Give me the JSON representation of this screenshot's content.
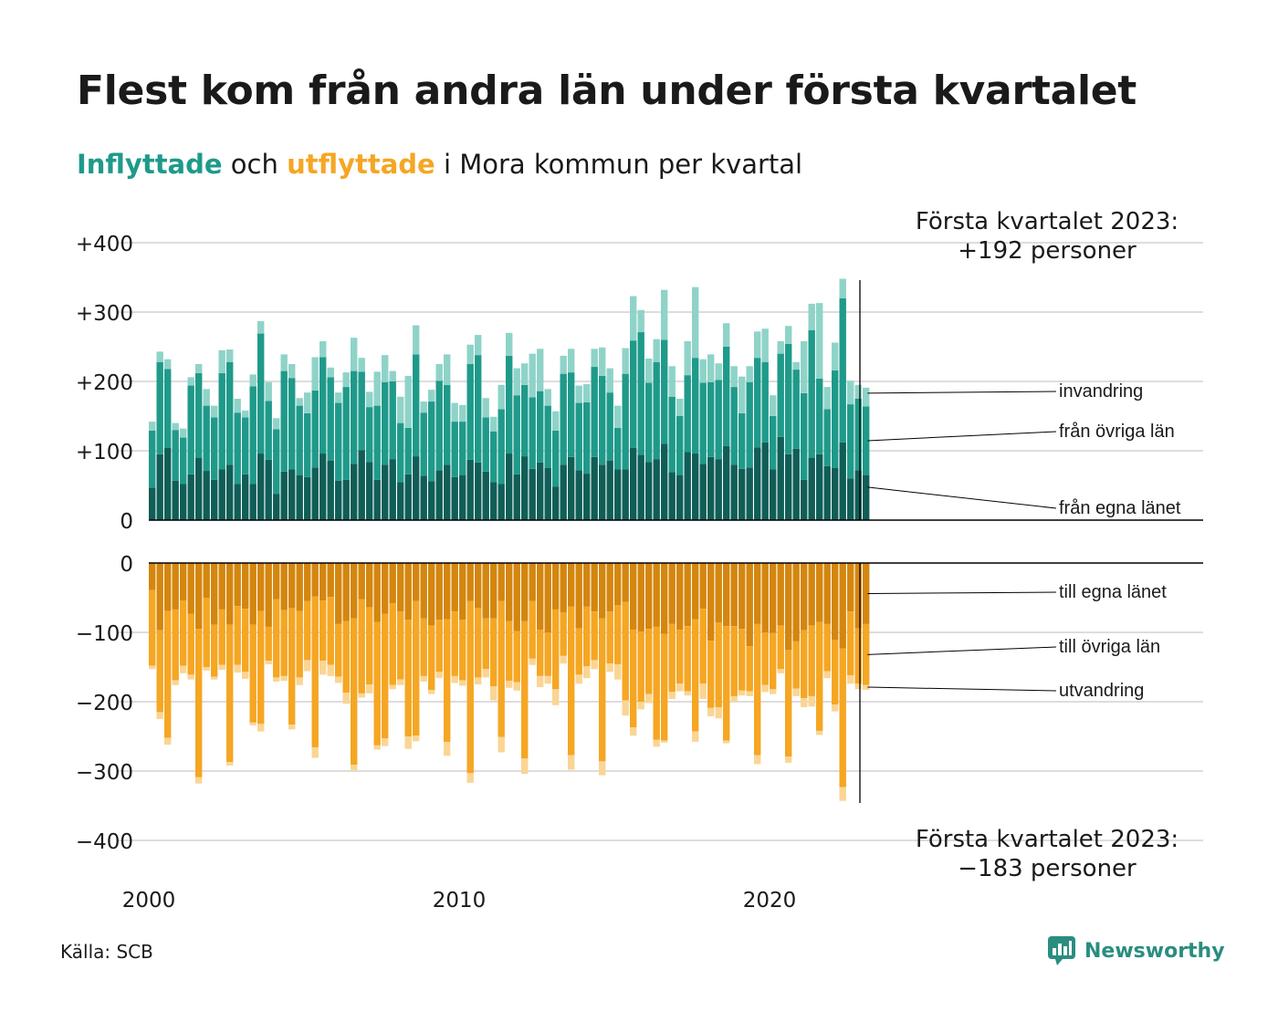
{
  "title": "Flest kom från andra län under första kvartalet",
  "subtitle": {
    "inflyttade": "Inflyttade",
    "och": "och",
    "utflyttade": "utflyttade",
    "rest": "i Mora kommun per kvartal"
  },
  "source": "Källa: SCB",
  "brand": {
    "name": "Newsworthy",
    "icon": "newsworthy-logo-icon"
  },
  "colors": {
    "in_own": "#105e57",
    "in_other": "#1f9a8a",
    "in_imm": "#8fd3c8",
    "out_own": "#d4860e",
    "out_other": "#f5a623",
    "out_emi": "#fad594",
    "grid": "#dddddd"
  },
  "chart_data": {
    "type": "bar",
    "start_year": 2000,
    "y_top": {
      "ticks": [
        0,
        100,
        200,
        300,
        400
      ],
      "tick_labels": [
        "0",
        "+100",
        "+200",
        "+300",
        "+400"
      ],
      "ylim": [
        0,
        400
      ]
    },
    "y_bottom": {
      "ticks": [
        0,
        -100,
        -200,
        -300,
        -400
      ],
      "tick_labels": [
        "0",
        "−100",
        "−200",
        "−300",
        "−400"
      ],
      "ylim": [
        -400,
        0
      ]
    },
    "x_ticks": [
      "2000",
      "2010",
      "2020"
    ],
    "grid": true,
    "annotation_top": [
      "Första kvartalet 2023:",
      "+192 personer"
    ],
    "annotation_bottom": [
      "Första kvartalet 2023:",
      "−183 personer"
    ],
    "series_in": [
      {
        "name": "från egna länet",
        "values": [
          47,
          95,
          104,
          57,
          52,
          66,
          90,
          71,
          58,
          73,
          80,
          52,
          66,
          52,
          96,
          87,
          38,
          70,
          73,
          65,
          62,
          76,
          96,
          86,
          57,
          58,
          81,
          101,
          84,
          58,
          80,
          88,
          55,
          66,
          92,
          64,
          56,
          72,
          80,
          62,
          65,
          87,
          83,
          70,
          55,
          52,
          96,
          66,
          92,
          74,
          83,
          75,
          48,
          80,
          91,
          72,
          67,
          91,
          80,
          86,
          73,
          73,
          104,
          94,
          84,
          88,
          110,
          69,
          65,
          98,
          96,
          81,
          91,
          88,
          107,
          80,
          74,
          76,
          105,
          112,
          73,
          120,
          95,
          103,
          58,
          90,
          95,
          78,
          75,
          112,
          60,
          72,
          65
        ]
      },
      {
        "name": "från övriga län",
        "values": [
          82,
          133,
          114,
          73,
          67,
          128,
          122,
          94,
          90,
          139,
          148,
          103,
          82,
          141,
          173,
          85,
          93,
          145,
          132,
          100,
          92,
          111,
          139,
          120,
          112,
          134,
          134,
          113,
          79,
          107,
          119,
          112,
          85,
          67,
          147,
          91,
          115,
          129,
          115,
          80,
          77,
          138,
          155,
          78,
          73,
          108,
          141,
          114,
          103,
          103,
          103,
          90,
          81,
          131,
          122,
          97,
          103,
          130,
          128,
          98,
          60,
          138,
          155,
          177,
          114,
          140,
          150,
          109,
          85,
          111,
          138,
          117,
          108,
          114,
          143,
          112,
          80,
          123,
          129,
          116,
          77,
          120,
          159,
          114,
          125,
          184,
          109,
          82,
          141,
          208,
          107,
          103,
          99
        ]
      },
      {
        "name": "invandring",
        "values": [
          13,
          15,
          14,
          10,
          13,
          12,
          13,
          24,
          17,
          33,
          18,
          20,
          10,
          17,
          18,
          27,
          16,
          24,
          20,
          11,
          30,
          48,
          23,
          14,
          15,
          21,
          48,
          20,
          22,
          49,
          39,
          15,
          38,
          75,
          42,
          16,
          17,
          24,
          44,
          27,
          24,
          28,
          29,
          28,
          21,
          35,
          33,
          39,
          31,
          63,
          61,
          24,
          28,
          26,
          34,
          25,
          26,
          26,
          41,
          35,
          32,
          37,
          64,
          32,
          35,
          33,
          72,
          44,
          25,
          49,
          102,
          34,
          40,
          24,
          34,
          30,
          53,
          23,
          38,
          48,
          30,
          18,
          26,
          11,
          75,
          38,
          109,
          32,
          40,
          28,
          34,
          20,
          27
        ]
      }
    ],
    "series_out": [
      {
        "name": "till egna länet",
        "values": [
          -39,
          -97,
          -69,
          -67,
          -54,
          -73,
          -95,
          -50,
          -89,
          -67,
          -89,
          -62,
          -66,
          -89,
          -69,
          -92,
          -52,
          -68,
          -65,
          -69,
          -55,
          -48,
          -54,
          -49,
          -88,
          -84,
          -80,
          -52,
          -64,
          -85,
          -73,
          -58,
          -70,
          -82,
          -55,
          -80,
          -90,
          -82,
          -81,
          -70,
          -82,
          -55,
          -65,
          -80,
          -80,
          -55,
          -84,
          -98,
          -84,
          -55,
          -96,
          -100,
          -67,
          -71,
          -63,
          -94,
          -63,
          -70,
          -80,
          -70,
          -61,
          -56,
          -96,
          -99,
          -95,
          -92,
          -102,
          -88,
          -96,
          -91,
          -81,
          -66,
          -112,
          -86,
          -91,
          -91,
          -95,
          -120,
          -88,
          -100,
          -101,
          -90,
          -125,
          -113,
          -97,
          -90,
          -85,
          -88,
          -111,
          -123,
          -70,
          -94,
          -88
        ]
      },
      {
        "name": "till övriga län",
        "values": [
          -109,
          -118,
          -183,
          -102,
          -94,
          -88,
          -214,
          -100,
          -75,
          -80,
          -198,
          -85,
          -91,
          -141,
          -163,
          -49,
          -113,
          -95,
          -168,
          -96,
          -85,
          -218,
          -87,
          -98,
          -76,
          -103,
          -211,
          -136,
          -111,
          -178,
          -180,
          -118,
          -98,
          -168,
          -194,
          -83,
          -93,
          -75,
          -177,
          -93,
          -87,
          -248,
          -100,
          -73,
          -98,
          -196,
          -86,
          -74,
          -198,
          -83,
          -67,
          -63,
          -115,
          -63,
          -214,
          -67,
          -86,
          -70,
          -206,
          -75,
          -85,
          -142,
          -141,
          -101,
          -94,
          -163,
          -154,
          -98,
          -78,
          -94,
          -162,
          -108,
          -97,
          -122,
          -165,
          -101,
          -89,
          -65,
          -189,
          -76,
          -81,
          -63,
          -154,
          -68,
          -98,
          -102,
          -157,
          -68,
          -93,
          -200,
          -92,
          -80,
          -88
        ]
      },
      {
        "name": "utvandring",
        "values": [
          -5,
          -10,
          -10,
          -7,
          -11,
          -7,
          -9,
          -5,
          -4,
          -7,
          -5,
          -11,
          -10,
          -4,
          -11,
          -5,
          -6,
          -7,
          -7,
          -11,
          -16,
          -15,
          -20,
          -16,
          -9,
          -16,
          -8,
          -6,
          -13,
          -6,
          -11,
          -6,
          -8,
          -18,
          -8,
          -8,
          -6,
          -9,
          -20,
          -10,
          -8,
          -14,
          -10,
          -12,
          -20,
          -22,
          -10,
          -12,
          -22,
          -9,
          -16,
          -11,
          -23,
          -11,
          -21,
          -13,
          -17,
          -13,
          -20,
          -12,
          -22,
          -22,
          -12,
          -11,
          -13,
          -10,
          -3,
          -10,
          -11,
          -6,
          -15,
          -22,
          -12,
          -16,
          -4,
          -8,
          -7,
          -7,
          -13,
          -10,
          -7,
          -6,
          -9,
          -11,
          -13,
          -15,
          -6,
          -10,
          -10,
          -20,
          -12,
          -8,
          -7
        ]
      }
    ]
  }
}
